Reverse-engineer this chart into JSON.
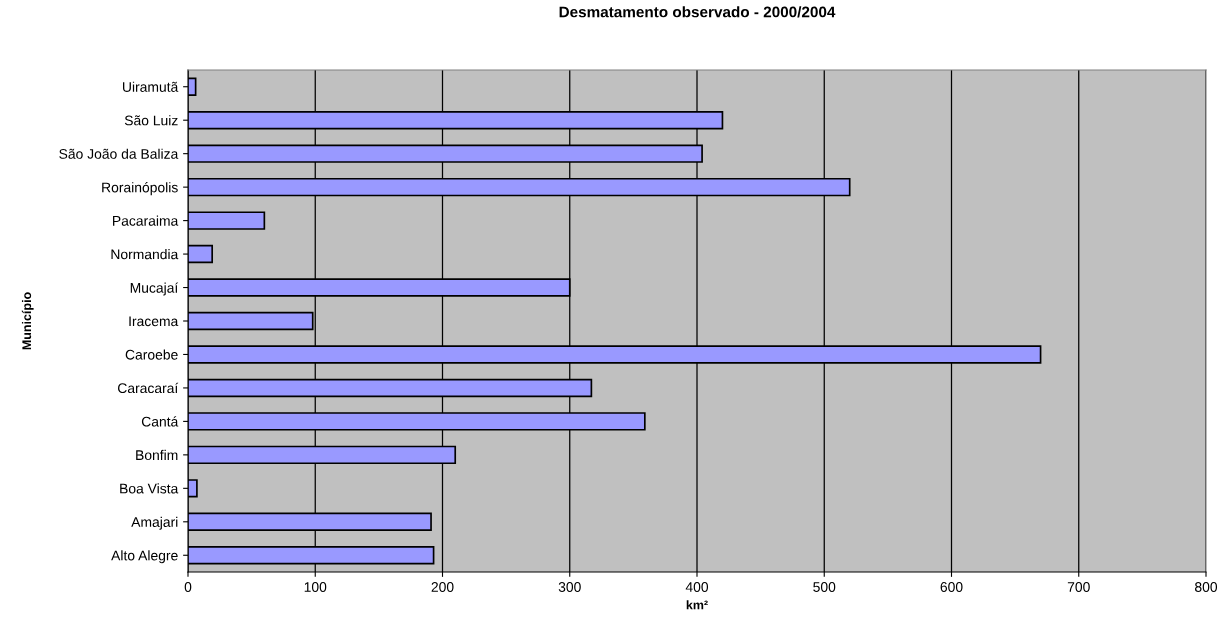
{
  "chart_data": {
    "type": "bar",
    "orientation": "horizontal",
    "title": "Desmatamento observado - 2000/2004",
    "xlabel": "km²",
    "ylabel": "Município",
    "categories": [
      "Uiramutã",
      "São Luiz",
      "São João da Baliza",
      "Rorainópolis",
      "Pacaraima",
      "Normandia",
      "Mucajaí",
      "Iracema",
      "Caroebe",
      "Caracaraí",
      "Cantá",
      "Bonfim",
      "Boa Vista",
      "Amajari",
      "Alto Alegre"
    ],
    "values": [
      6,
      420,
      404,
      520,
      60,
      19,
      300,
      98,
      670,
      317,
      359,
      210,
      7,
      191,
      193
    ],
    "color": "#9999ff",
    "xlim": [
      0,
      800
    ],
    "xticks": [
      0,
      100,
      200,
      300,
      400,
      500,
      600,
      700,
      800
    ],
    "grid": "x"
  }
}
